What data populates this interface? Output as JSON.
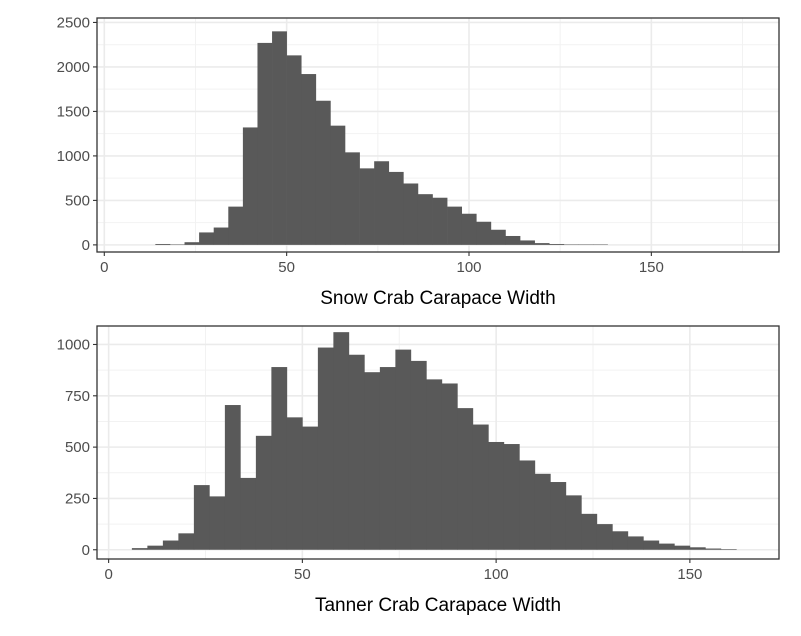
{
  "chart_data": [
    {
      "type": "bar",
      "subtype": "histogram",
      "xlabel": "Snow Crab Carapace Width",
      "ylabel": "",
      "xlim": [
        -2,
        185
      ],
      "ylim": [
        -80,
        2550
      ],
      "binwidth": 4,
      "bin_starts": [
        14,
        18,
        22,
        26,
        30,
        34,
        38,
        42,
        46,
        50,
        54,
        58,
        62,
        66,
        70,
        74,
        78,
        82,
        86,
        90,
        94,
        98,
        102,
        106,
        110,
        114,
        118,
        122,
        126,
        130,
        134
      ],
      "values": [
        10,
        5,
        30,
        140,
        195,
        430,
        1320,
        2270,
        2400,
        2130,
        1920,
        1620,
        1340,
        1040,
        860,
        940,
        820,
        690,
        570,
        530,
        430,
        350,
        260,
        170,
        100,
        50,
        20,
        10,
        5,
        5,
        5
      ],
      "x_ticks": [
        0,
        50,
        100,
        150
      ],
      "y_ticks": [
        0,
        500,
        1000,
        1500,
        2000,
        2500
      ],
      "grid": true,
      "colors": {
        "bar": "#595959",
        "grid_major": "#ebebeb",
        "grid_minor": "#f2f2f2",
        "panel_border": "#333333",
        "tick_text": "#4d4d4d",
        "title_text": "#000000"
      }
    },
    {
      "type": "bar",
      "subtype": "histogram",
      "xlabel": "Tanner Crab Carapace Width",
      "ylabel": "",
      "xlim": [
        -3,
        173
      ],
      "ylim": [
        -45,
        1090
      ],
      "binwidth": 4,
      "bin_starts": [
        6,
        10,
        14,
        18,
        22,
        26,
        30,
        34,
        38,
        42,
        46,
        50,
        54,
        58,
        62,
        66,
        70,
        74,
        78,
        82,
        86,
        90,
        94,
        98,
        102,
        106,
        110,
        114,
        118,
        122,
        126,
        130,
        134,
        138,
        142,
        146,
        150,
        154,
        158
      ],
      "values": [
        8,
        20,
        45,
        80,
        315,
        260,
        705,
        350,
        555,
        890,
        645,
        600,
        985,
        1060,
        950,
        865,
        890,
        975,
        920,
        830,
        810,
        690,
        610,
        525,
        515,
        435,
        370,
        330,
        265,
        175,
        125,
        90,
        65,
        45,
        30,
        20,
        12,
        6,
        3
      ],
      "x_ticks": [
        0,
        50,
        100,
        150
      ],
      "y_ticks": [
        0,
        250,
        500,
        750,
        1000
      ],
      "grid": true,
      "colors": {
        "bar": "#595959",
        "grid_major": "#ebebeb",
        "grid_minor": "#f2f2f2",
        "panel_border": "#333333",
        "tick_text": "#4d4d4d",
        "title_text": "#000000"
      }
    }
  ]
}
